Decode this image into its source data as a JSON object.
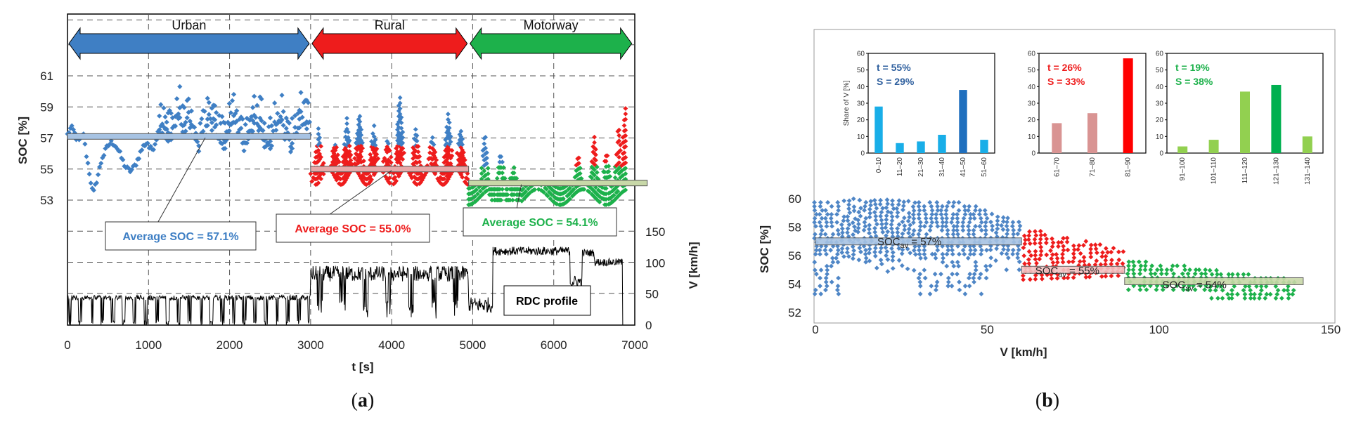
{
  "chart_data": [
    {
      "id": "a",
      "type": "scatter",
      "caption_prefix": "(",
      "caption_letter": "a",
      "caption_suffix": ")",
      "xlabel": "t [s]",
      "ylabel": "SOC [%]",
      "y2label": "V [km/h]",
      "xlim": [
        0,
        7000
      ],
      "xticks": [
        "0",
        "1000",
        "2000",
        "3000",
        "4000",
        "5000",
        "6000",
        "7000"
      ],
      "yticks": [
        "53",
        "55",
        "57",
        "59",
        "61"
      ],
      "y2ticks": [
        "0",
        "50",
        "100",
        "150"
      ],
      "segments": [
        {
          "name": "Urban",
          "color": "#3f7fc4",
          "avg_label": "Average SOC = 57.1%",
          "avg": 57.1
        },
        {
          "name": "Rural",
          "color": "#ee1c1c",
          "avg_label": "Average SOC = 55.0%",
          "avg": 55.0
        },
        {
          "name": "Motorway",
          "color": "#1db14b",
          "avg_label": "Average SOC = 54.1%",
          "avg": 54.1
        }
      ],
      "profile_label": "RDC profile"
    },
    {
      "id": "b",
      "type": "scatter",
      "caption_prefix": "(",
      "caption_letter": "b",
      "caption_suffix": ")",
      "xlabel": "V [km/h]",
      "ylabel": "SOC [%]",
      "xlim": [
        0,
        150
      ],
      "ylim": [
        52,
        60
      ],
      "xticks": [
        "0",
        "50",
        "100",
        "150"
      ],
      "yticks": [
        "52",
        "54",
        "56",
        "58",
        "60"
      ],
      "soc_labels": [
        {
          "main": "SOC",
          "sub": "av",
          "value": " = 57%"
        },
        {
          "main": "SOC",
          "sub": "av",
          "value": " = 55%"
        },
        {
          "main": "SOC",
          "sub": "av",
          "value": " = 54%"
        }
      ],
      "inset_ylabel": "Share of V [%]",
      "insets": [
        {
          "type": "bar",
          "t_label": "t = 55%",
          "s_label": "S = 29%",
          "text_color": "#2e5f9e",
          "bar_color": "#19aee8",
          "highlight_color": "#1f6fbe",
          "highlight_index": 4,
          "categories": [
            "0–10",
            "11–20",
            "21–30",
            "31–40",
            "41–50",
            "51–60"
          ],
          "values": [
            28,
            6,
            7,
            11,
            38,
            8
          ],
          "yticks": [
            "0",
            "10",
            "20",
            "30",
            "40",
            "50",
            "60"
          ]
        },
        {
          "type": "bar",
          "t_label": "t = 26%",
          "s_label": "S = 33%",
          "text_color": "#ee1c1c",
          "bar_color": "#d99493",
          "highlight_color": "#ff0000",
          "highlight_index": 2,
          "categories": [
            "61–70",
            "71–80",
            "81–90"
          ],
          "values": [
            18,
            24,
            57
          ],
          "yticks": [
            "0",
            "10",
            "20",
            "30",
            "40",
            "50",
            "60"
          ]
        },
        {
          "type": "bar",
          "t_label": "t = 19%",
          "s_label": "S = 38%",
          "text_color": "#1db14b",
          "bar_color": "#92d050",
          "highlight_color": "#00b050",
          "highlight_index": 3,
          "categories": [
            "91–100",
            "101–110",
            "111–120",
            "121–130",
            "131–140"
          ],
          "values": [
            4,
            8,
            37,
            41,
            10
          ],
          "yticks": [
            "0",
            "10",
            "20",
            "30",
            "40",
            "50",
            "60"
          ]
        }
      ]
    }
  ]
}
